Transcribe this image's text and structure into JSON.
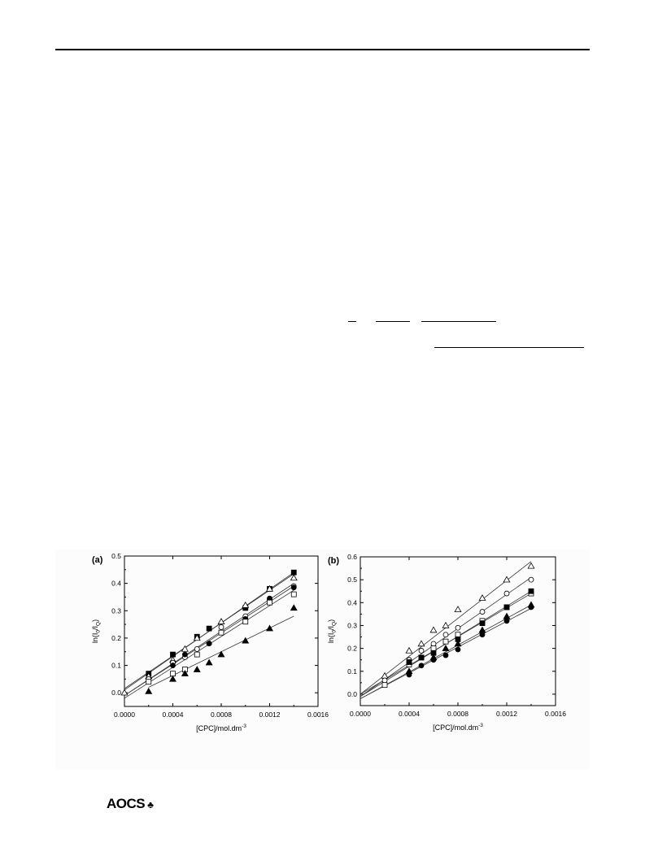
{
  "footer": {
    "logo_text": "AOCS",
    "logo_mark_icon": "trefoil-icon"
  },
  "chart_data": [
    {
      "type": "scatter",
      "panel_label": "(a)",
      "xlabel": "[CPC]/mol.dm",
      "xlabel_sup": "-3",
      "ylabel": "ln(I0/IQ)",
      "xlim": [
        0,
        0.0016
      ],
      "ylim": [
        -0.05,
        0.5
      ],
      "xticks": [
        "0.0000",
        "0.0004",
        "0.0008",
        "0.0012",
        "0.0016"
      ],
      "yticks": [
        "0.0",
        "0.1",
        "0.2",
        "0.3",
        "0.4",
        "0.5"
      ],
      "series": [
        {
          "marker": "filled-square",
          "x": [
            0.0002,
            0.0004,
            0.0006,
            0.0007,
            0.001,
            0.0012,
            0.0014
          ],
          "y": [
            0.07,
            0.14,
            0.205,
            0.235,
            0.31,
            0.38,
            0.44
          ],
          "fit": [
            [
              0,
              0.01
            ],
            [
              0.0014,
              0.44
            ]
          ]
        },
        {
          "marker": "open-triangle",
          "x": [
            0,
            0.0002,
            0.0004,
            0.0005,
            0.0006,
            0.0008,
            0.001,
            0.0012,
            0.0014
          ],
          "y": [
            0.0,
            0.06,
            0.12,
            0.16,
            0.2,
            0.26,
            0.32,
            0.38,
            0.42
          ],
          "fit": [
            [
              0,
              0.015
            ],
            [
              0.0014,
              0.435
            ]
          ]
        },
        {
          "marker": "open-circle",
          "x": [
            0.0002,
            0.0004,
            0.0005,
            0.0006,
            0.0007,
            0.0008,
            0.001,
            0.0012,
            0.0014
          ],
          "y": [
            0.05,
            0.11,
            0.13,
            0.16,
            0.18,
            0.24,
            0.28,
            0.34,
            0.39
          ],
          "fit": [
            [
              0,
              -0.01
            ],
            [
              0.0014,
              0.4
            ]
          ]
        },
        {
          "marker": "filled-circle",
          "x": [
            0.0004,
            0.0005,
            0.0007,
            0.001,
            0.0012,
            0.0014
          ],
          "y": [
            0.1,
            0.14,
            0.18,
            0.27,
            0.345,
            0.385
          ],
          "fit": [
            [
              0,
              -0.01
            ],
            [
              0.0014,
              0.39
            ]
          ]
        },
        {
          "marker": "open-square",
          "x": [
            0.0002,
            0.0004,
            0.0005,
            0.0006,
            0.0008,
            0.001,
            0.0012,
            0.0014
          ],
          "y": [
            0.04,
            0.07,
            0.085,
            0.14,
            0.22,
            0.26,
            0.33,
            0.36
          ],
          "fit": [
            [
              0,
              -0.02
            ],
            [
              0.0014,
              0.375
            ]
          ]
        },
        {
          "marker": "filled-triangle",
          "x": [
            0.0002,
            0.0004,
            0.0005,
            0.0006,
            0.0007,
            0.0008,
            0.001,
            0.0012,
            0.0014
          ],
          "y": [
            0.005,
            0.05,
            0.07,
            0.085,
            0.11,
            0.14,
            0.19,
            0.235,
            0.31
          ],
          "fit": [
            [
              0.0002,
              0.02
            ],
            [
              0.0014,
              0.28
            ]
          ]
        }
      ]
    },
    {
      "type": "scatter",
      "panel_label": "(b)",
      "xlabel": "[CPC]/mol.dm",
      "xlabel_sup": "-3",
      "ylabel": "ln(I0/IQ)",
      "xlim": [
        0,
        0.0016
      ],
      "ylim": [
        -0.05,
        0.6
      ],
      "xticks": [
        "0.0000",
        "0.0004",
        "0.0008",
        "0.0012",
        "0.0016"
      ],
      "yticks": [
        "0.0",
        "0.1",
        "0.2",
        "0.3",
        "0.4",
        "0.5",
        "0.6"
      ],
      "series": [
        {
          "marker": "open-triangle",
          "x": [
            0.0002,
            0.0004,
            0.0005,
            0.0006,
            0.0007,
            0.0008,
            0.001,
            0.0012,
            0.0014
          ],
          "y": [
            0.08,
            0.19,
            0.22,
            0.28,
            0.3,
            0.37,
            0.42,
            0.5,
            0.56
          ],
          "fit": [
            [
              0,
              0.0
            ],
            [
              0.0014,
              0.58
            ]
          ]
        },
        {
          "marker": "open-circle",
          "x": [
            0.0002,
            0.0004,
            0.0005,
            0.0006,
            0.0007,
            0.0008,
            0.001,
            0.0012,
            0.0014
          ],
          "y": [
            0.06,
            0.15,
            0.19,
            0.22,
            0.26,
            0.29,
            0.36,
            0.44,
            0.5
          ],
          "fit": [
            [
              0,
              -0.01
            ],
            [
              0.0014,
              0.51
            ]
          ]
        },
        {
          "marker": "open-square",
          "x": [
            0.0002,
            0.0004,
            0.0005,
            0.0006,
            0.0007,
            0.0008,
            0.001,
            0.0012,
            0.0014
          ],
          "y": [
            0.04,
            0.13,
            0.16,
            0.2,
            0.23,
            0.26,
            0.32,
            0.38,
            0.44
          ],
          "fit": [
            [
              0,
              -0.01
            ],
            [
              0.0014,
              0.45
            ]
          ]
        },
        {
          "marker": "filled-square",
          "x": [
            0.0004,
            0.0005,
            0.0006,
            0.0008,
            0.001,
            0.0012,
            0.0014
          ],
          "y": [
            0.14,
            0.16,
            0.18,
            0.24,
            0.31,
            0.38,
            0.45
          ],
          "fit": [
            [
              0,
              0.0
            ],
            [
              0.0014,
              0.44
            ]
          ]
        },
        {
          "marker": "filled-triangle",
          "x": [
            0.0004,
            0.0006,
            0.0007,
            0.0008,
            0.001,
            0.0012,
            0.0014
          ],
          "y": [
            0.1,
            0.16,
            0.2,
            0.22,
            0.28,
            0.34,
            0.39
          ],
          "fit": [
            [
              0,
              -0.02
            ],
            [
              0.0014,
              0.39
            ]
          ]
        },
        {
          "marker": "filled-circle",
          "x": [
            0.0004,
            0.0005,
            0.0006,
            0.0007,
            0.0008,
            0.001,
            0.0012,
            0.0014
          ],
          "y": [
            0.085,
            0.125,
            0.15,
            0.17,
            0.195,
            0.26,
            0.32,
            0.38
          ],
          "fit": [
            [
              0,
              -0.02
            ],
            [
              0.0014,
              0.375
            ]
          ]
        }
      ]
    }
  ]
}
